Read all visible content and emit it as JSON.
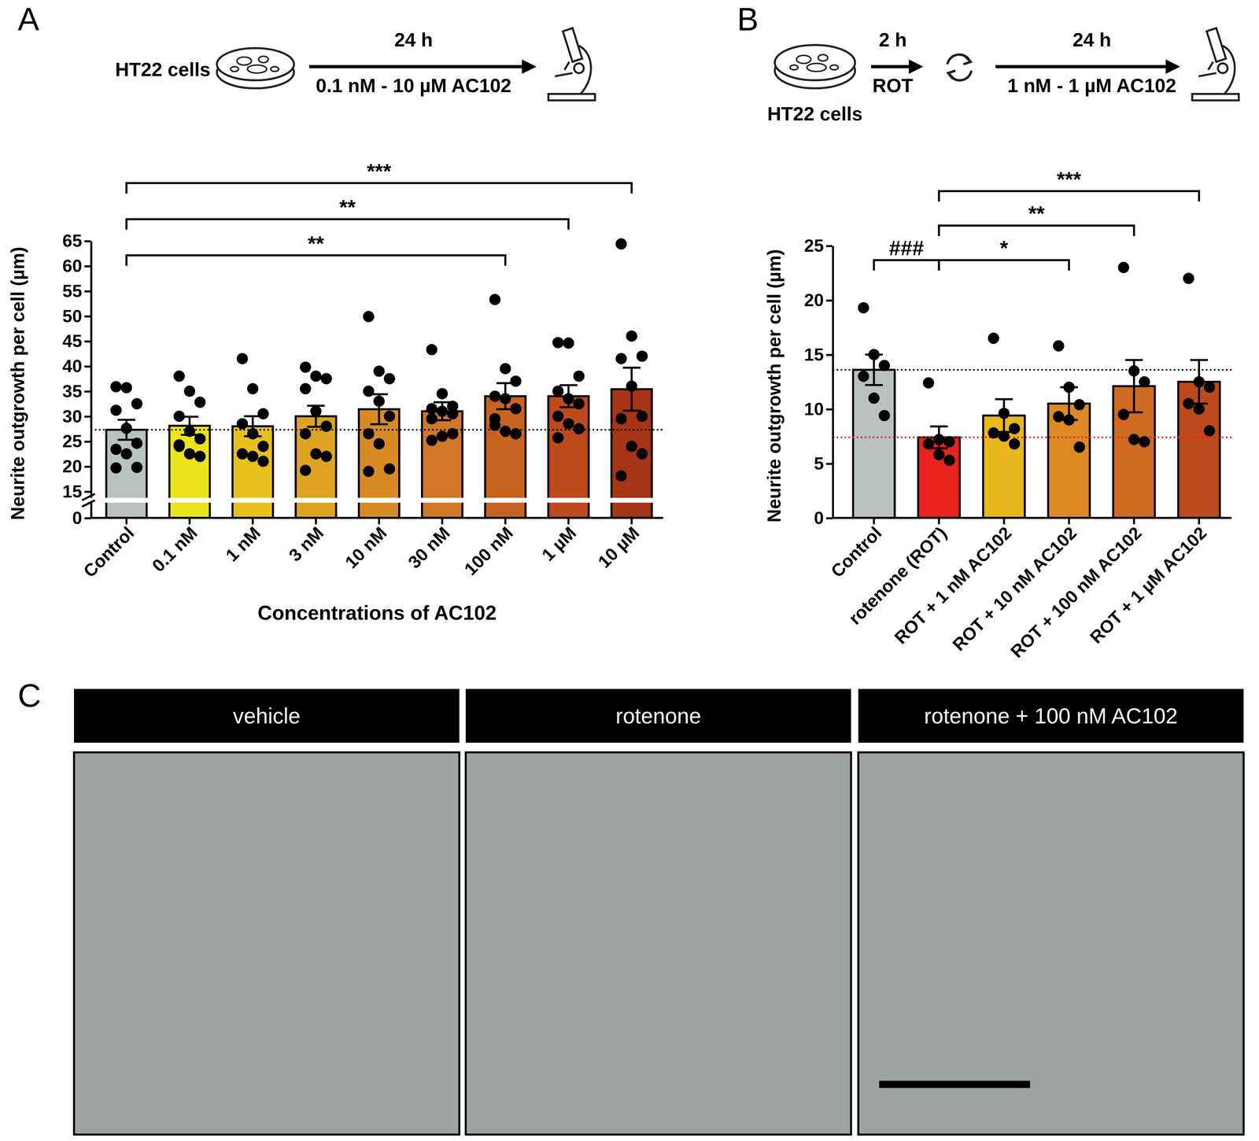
{
  "chart_data": [
    {
      "type": "bar",
      "panel_label": "A",
      "scheme": {
        "cells": "HT22 cells",
        "time": "24 h",
        "treatment": "0.1 nM - 10 µM AC102"
      },
      "x_label": "Concentrations of AC102",
      "y_label": "Neurite outgrowth per cell (µm)",
      "categories": [
        "Control",
        "0.1 nM",
        "1 nM",
        "3 nM",
        "10 nM",
        "30 nM",
        "100 nM",
        "1 µM",
        "10 µM"
      ],
      "values": [
        27.3,
        28.1,
        28.0,
        30.0,
        31.4,
        31.0,
        34.0,
        34.0,
        35.4
      ],
      "errors": [
        2.0,
        1.8,
        2.0,
        2.1,
        3.0,
        1.8,
        2.6,
        2.2,
        4.3
      ],
      "points": [
        [
          35.9,
          35.7,
          32.5,
          31.2,
          27.6,
          24.6,
          23.4,
          22.5,
          19.8,
          19.7
        ],
        [
          38.0,
          35.0,
          32.8,
          30.0,
          27.0,
          25.5,
          24.3,
          22.5,
          22.0,
          24.0
        ],
        [
          41.5,
          35.5,
          30.5,
          28.5,
          26.5,
          24.0,
          22.5,
          22.0,
          21.0
        ],
        [
          39.8,
          38.0,
          37.5,
          35.5,
          31.0,
          28.0,
          26.5,
          22.5,
          22.0,
          19.2
        ],
        [
          49.9,
          39.0,
          37.5,
          35.0,
          33.0,
          30.0,
          26.5,
          24.5,
          19.5,
          19.0
        ],
        [
          43.3,
          34.5,
          32.0,
          31.5,
          31.0,
          30.5,
          29.5,
          26.0,
          26.5,
          25.2
        ],
        [
          53.3,
          39.5,
          37.0,
          34.0,
          33.5,
          31.5,
          29.5,
          27.0,
          26.5,
          28.2
        ],
        [
          44.7,
          44.6,
          38.0,
          35.0,
          33.5,
          32.5,
          30.0,
          28.5,
          27.5,
          25.7
        ],
        [
          64.4,
          46.0,
          42.0,
          41.5,
          36.0,
          30.0,
          29.5,
          24.0,
          22.5,
          18.1
        ]
      ],
      "colors": [
        "#b8c2c1",
        "#ece41b",
        "#e8c11e",
        "#dea323",
        "#d88b25",
        "#cf7726",
        "#c76321",
        "#bd4a1c",
        "#a63517"
      ],
      "ylim": [
        0,
        65
      ],
      "yticks": [
        0,
        15,
        20,
        25,
        30,
        35,
        40,
        45,
        50,
        55,
        60,
        65
      ],
      "y_break": [
        0,
        15
      ],
      "reference_lines": [
        {
          "value": 27.3,
          "color": "#000000"
        }
      ],
      "annotations": [
        {
          "label": "**",
          "from": 0,
          "to": 6
        },
        {
          "label": "**",
          "from": 0,
          "to": 7
        },
        {
          "label": "***",
          "from": 0,
          "to": 8
        }
      ]
    },
    {
      "type": "bar",
      "panel_label": "B",
      "scheme": {
        "cells": "HT22 cells",
        "pre_time": "2 h",
        "pre_treatment": "ROT",
        "time": "24 h",
        "treatment": "1 nM - 1 µM AC102"
      },
      "y_label": "Neurite outgrowth per cell (µm)",
      "categories": [
        "Control",
        "rotenone (ROT)",
        "ROT + 1 nM AC102",
        "ROT + 10 nM AC102",
        "ROT + 100 nM AC102",
        "ROT + 1 µM AC102"
      ],
      "values": [
        13.6,
        7.4,
        9.4,
        10.5,
        12.1,
        12.5
      ],
      "errors": [
        1.4,
        1.0,
        1.5,
        1.5,
        2.4,
        2.0
      ],
      "points": [
        [
          19.3,
          15.0,
          14.0,
          13.0,
          11.0,
          9.4
        ],
        [
          12.4,
          7.2,
          7.0,
          6.8,
          5.8,
          5.3
        ],
        [
          16.5,
          9.6,
          8.2,
          7.8,
          7.5,
          6.8
        ],
        [
          15.8,
          12.0,
          10.4,
          9.3,
          9.0,
          6.5
        ],
        [
          23.0,
          13.5,
          12.5,
          9.5,
          7.2,
          7.0
        ],
        [
          22.0,
          12.5,
          12.0,
          10.5,
          10.0,
          8.0
        ]
      ],
      "colors": [
        "#b8c2c1",
        "#e8221f",
        "#e8b81d",
        "#de8a24",
        "#cf6a22",
        "#bd4a1c"
      ],
      "ylim": [
        0,
        25
      ],
      "yticks": [
        0,
        5,
        10,
        15,
        20,
        25
      ],
      "reference_lines": [
        {
          "value": 13.6,
          "color": "#000000"
        },
        {
          "value": 7.4,
          "color": "#e8221f"
        }
      ],
      "annotations": [
        {
          "label": "###",
          "from": 0,
          "to": 1
        },
        {
          "label": "*",
          "from": 1,
          "to": 3
        },
        {
          "label": "**",
          "from": 1,
          "to": 4
        },
        {
          "label": "***",
          "from": 1,
          "to": 5
        }
      ]
    }
  ],
  "panel_c": {
    "panel_label": "C",
    "panels": [
      "vehicle",
      "rotenone",
      "rotenone + 100 nM AC102"
    ]
  }
}
